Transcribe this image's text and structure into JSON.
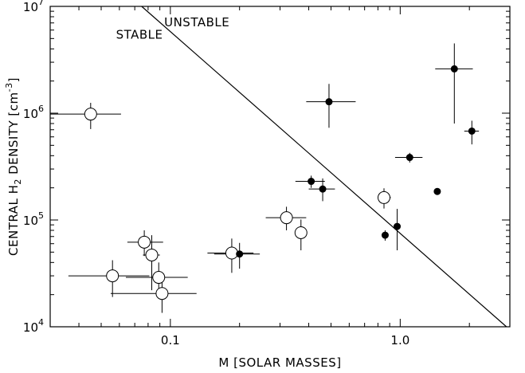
{
  "chart_data": {
    "type": "scatter",
    "x_scale": "log",
    "y_scale": "log",
    "xlim": [
      0.03,
      3.0
    ],
    "ylim": [
      10000,
      10000000
    ],
    "xlabel": "M [SOLAR MASSES]",
    "ylabel_prefix": "CENTRAL H",
    "ylabel_sub": "2",
    "ylabel_middle": " DENSITY [cm",
    "ylabel_sup": "-3",
    "ylabel_suffix": "]",
    "x_ticks": [
      {
        "value": 0.1,
        "label": "0.1"
      },
      {
        "value": 1.0,
        "label": "1.0"
      }
    ],
    "y_ticks": [
      {
        "exp": 4,
        "base": "10",
        "power": "4"
      },
      {
        "exp": 5,
        "base": "10",
        "power": "5"
      },
      {
        "exp": 6,
        "base": "10",
        "power": "6"
      },
      {
        "exp": 7,
        "base": "10",
        "power": "7"
      }
    ],
    "grid": false,
    "annotations": [
      {
        "text": "STABLE",
        "x": 0.058,
        "y": 5000000
      },
      {
        "text": "UNSTABLE",
        "x": 0.094,
        "y": 6500000
      }
    ],
    "stability_line": {
      "x": [
        0.075,
        2.9
      ],
      "y": [
        10000000,
        10000
      ]
    },
    "series": [
      {
        "marker": "open-circle",
        "points": [
          {
            "x": 0.045,
            "y": 980000,
            "xerr": [
              0.015,
              0.016
            ],
            "yerr": [
              270000,
              270000
            ]
          },
          {
            "x": 0.056,
            "y": 30000,
            "xerr": [
              0.02,
              0.025
            ],
            "yerr": [
              11000,
              12000
            ]
          },
          {
            "x": 0.077,
            "y": 62000,
            "xerr": [
              0.012,
              0.016
            ],
            "yerr": [
              16000,
              18000
            ]
          },
          {
            "x": 0.083,
            "y": 47000,
            "xerr": [
              0.007,
              0.007
            ],
            "yerr": [
              25000,
              25000
            ]
          },
          {
            "x": 0.089,
            "y": 29000,
            "xerr": [
              0.025,
              0.03
            ],
            "yerr": [
              10000,
              11000
            ]
          },
          {
            "x": 0.092,
            "y": 20500,
            "xerr": [
              0.037,
              0.038
            ],
            "yerr": [
              7000,
              7000
            ]
          },
          {
            "x": 0.185,
            "y": 49000,
            "xerr": [
              0.04,
              0.045
            ],
            "yerr": [
              17000,
              18000
            ]
          },
          {
            "x": 0.32,
            "y": 105000,
            "xerr": [
              0.06,
              0.07
            ],
            "yerr": [
              25000,
              28000
            ]
          },
          {
            "x": 0.37,
            "y": 76000,
            "xerr": [
              0.02,
              0.02
            ],
            "yerr": [
              24000,
              25000
            ]
          },
          {
            "x": 0.85,
            "y": 162000,
            "xerr": [
              0.05,
              0.06
            ],
            "yerr": [
              34000,
              36000
            ]
          }
        ]
      },
      {
        "marker": "filled-circle",
        "points": [
          {
            "x": 0.2,
            "y": 48000,
            "xerr": [
              0.045,
              0.045
            ],
            "yerr": [
              13000,
              13000
            ]
          },
          {
            "x": 0.41,
            "y": 230000,
            "xerr": [
              0.06,
              0.06
            ],
            "yerr": [
              30000,
              30000
            ]
          },
          {
            "x": 0.46,
            "y": 195000,
            "xerr": [
              0.06,
              0.06
            ],
            "yerr": [
              45000,
              50000
            ]
          },
          {
            "x": 0.49,
            "y": 1280000,
            "xerr": [
              0.1,
              0.15
            ],
            "yerr": [
              550000,
              600000
            ]
          },
          {
            "x": 0.86,
            "y": 72000,
            "xerr": [
              0.02,
              0.02
            ],
            "yerr": [
              8000,
              8000
            ]
          },
          {
            "x": 0.97,
            "y": 87000,
            "xerr": [
              0.03,
              0.03
            ],
            "yerr": [
              35000,
              40000
            ]
          },
          {
            "x": 1.1,
            "y": 385000,
            "xerr": [
              0.15,
              0.15
            ],
            "yerr": [
              40000,
              40000
            ]
          },
          {
            "x": 1.45,
            "y": 185000,
            "xerr": [
              0.03,
              0.03
            ],
            "yerr": [
              8000,
              8000
            ]
          },
          {
            "x": 1.72,
            "y": 2600000,
            "xerr": [
              0.3,
              0.35
            ],
            "yerr": [
              1800000,
              1900000
            ]
          },
          {
            "x": 2.05,
            "y": 680000,
            "xerr": [
              0.15,
              0.15
            ],
            "yerr": [
              170000,
              170000
            ]
          }
        ]
      }
    ]
  }
}
